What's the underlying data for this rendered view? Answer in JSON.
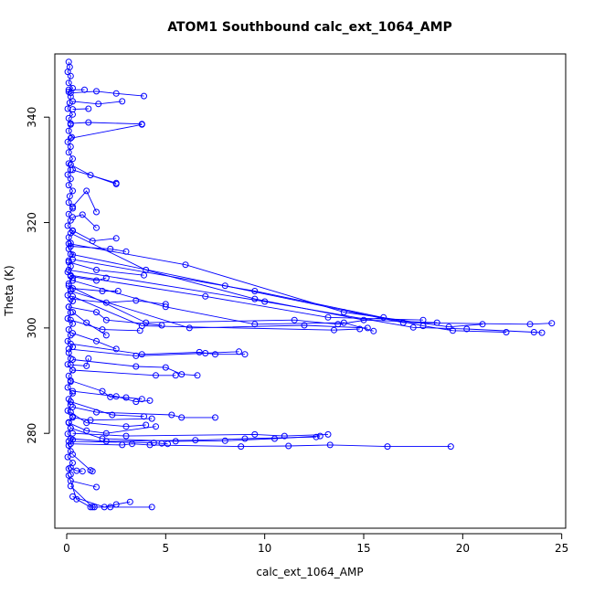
{
  "colors": {
    "series": "#0000ff",
    "axis": "#000000",
    "background": "#ffffff"
  },
  "chart_data": {
    "type": "line",
    "title": "ATOM1 Southbound calc_ext_1064_AMP",
    "xlabel": "calc_ext_1064_AMP",
    "ylabel": "Theta (K)",
    "xlim": [
      -0.6,
      25.2
    ],
    "ylim": [
      262,
      352
    ],
    "x_ticks": [
      0,
      5,
      10,
      15,
      20,
      25
    ],
    "y_ticks": [
      280,
      300,
      320,
      340
    ],
    "x_tick_labels": [
      "0",
      "5",
      "10",
      "15",
      "20",
      "25"
    ],
    "y_tick_labels": [
      "280",
      "300",
      "320",
      "340"
    ],
    "marker": "open-circle",
    "segments": [
      [
        [
          0.1,
          350.5
        ],
        [
          0.15,
          349.5
        ],
        [
          0.05,
          348.6
        ],
        [
          0.2,
          347.8
        ],
        [
          0.1,
          346.5
        ],
        [
          0.3,
          345.5
        ],
        [
          0.1,
          344.8
        ],
        [
          0.2,
          343.9
        ],
        [
          0.15,
          342.7
        ],
        [
          0.05,
          341.6
        ],
        [
          0.3,
          340.5
        ],
        [
          0.1,
          339.8
        ],
        [
          0.2,
          338.6
        ],
        [
          0.1,
          337.4
        ],
        [
          0.25,
          336.2
        ],
        [
          0.05,
          335.3
        ],
        [
          0.2,
          334.4
        ],
        [
          0.1,
          333.3
        ],
        [
          0.3,
          332.1
        ],
        [
          0.1,
          331.2
        ],
        [
          0.2,
          330.0
        ],
        [
          0.05,
          329.1
        ],
        [
          0.2,
          328.3
        ],
        [
          0.1,
          327.1
        ],
        [
          0.3,
          326.0
        ],
        [
          0.15,
          325.0
        ],
        [
          0.1,
          323.8
        ],
        [
          0.3,
          322.7
        ],
        [
          0.1,
          321.6
        ],
        [
          0.2,
          320.4
        ],
        [
          0.05,
          319.4
        ],
        [
          0.3,
          318.4
        ],
        [
          0.1,
          317.2
        ],
        [
          0.2,
          316.1
        ],
        [
          0.1,
          315.0
        ],
        [
          0.3,
          313.9
        ],
        [
          0.1,
          312.8
        ],
        [
          0.2,
          311.7
        ],
        [
          0.05,
          310.6
        ],
        [
          0.3,
          309.5
        ],
        [
          0.1,
          308.4
        ],
        [
          0.2,
          307.3
        ],
        [
          0.05,
          306.2
        ],
        [
          0.3,
          305.1
        ],
        [
          0.1,
          304.0
        ],
        [
          0.2,
          302.9
        ],
        [
          0.05,
          301.8
        ],
        [
          0.3,
          300.8
        ],
        [
          0.1,
          299.7
        ],
        [
          0.2,
          298.6
        ],
        [
          0.05,
          297.5
        ],
        [
          0.3,
          296.4
        ],
        [
          0.1,
          295.3
        ],
        [
          0.2,
          294.2
        ],
        [
          0.05,
          293.1
        ],
        [
          0.3,
          292.0
        ],
        [
          0.1,
          290.9
        ],
        [
          0.2,
          289.8
        ],
        [
          0.05,
          288.7
        ],
        [
          0.3,
          287.6
        ],
        [
          0.1,
          286.5
        ],
        [
          0.2,
          285.4
        ],
        [
          0.05,
          284.3
        ],
        [
          0.3,
          283.2
        ],
        [
          0.1,
          282.1
        ],
        [
          0.2,
          281.0
        ],
        [
          0.05,
          279.9
        ],
        [
          0.3,
          278.8
        ],
        [
          0.1,
          277.7
        ],
        [
          0.2,
          276.6
        ],
        [
          0.05,
          275.5
        ],
        [
          0.3,
          274.4
        ],
        [
          0.1,
          273.3
        ],
        [
          0.2,
          272.2
        ]
      ],
      [
        [
          0.2,
          344.6
        ],
        [
          1.5,
          344.9
        ],
        [
          2.5,
          344.5
        ],
        [
          3.9,
          344.0
        ]
      ],
      [
        [
          0.3,
          343.0
        ],
        [
          1.6,
          342.5
        ],
        [
          2.8,
          343.0
        ]
      ],
      [
        [
          0.2,
          338.8
        ],
        [
          1.1,
          339.0
        ],
        [
          3.8,
          338.7
        ]
      ],
      [
        [
          0.3,
          341.5
        ],
        [
          1.1,
          341.6
        ]
      ],
      [
        [
          0.1,
          345.2
        ],
        [
          0.9,
          345.2
        ]
      ],
      [
        [
          0.2,
          336.0
        ],
        [
          3.8,
          338.6
        ]
      ],
      [
        [
          0.3,
          330.0
        ],
        [
          2.5,
          327.5
        ]
      ],
      [
        [
          0.2,
          331.0
        ],
        [
          1.2,
          329.0
        ],
        [
          2.5,
          327.3
        ]
      ],
      [
        [
          0.3,
          323.0
        ],
        [
          1.0,
          326.0
        ],
        [
          1.5,
          322.0
        ]
      ],
      [
        [
          0.2,
          318.0
        ],
        [
          4.0,
          311.0
        ],
        [
          9.5,
          305.5
        ],
        [
          15.0,
          301.5
        ],
        [
          18.7,
          301.0
        ]
      ],
      [
        [
          0.1,
          316.0
        ],
        [
          6.0,
          312.0
        ],
        [
          14.0,
          303.0
        ],
        [
          19.3,
          300.2
        ],
        [
          21.0,
          300.7
        ]
      ],
      [
        [
          0.2,
          314.0
        ],
        [
          8.0,
          308.0
        ],
        [
          17.0,
          301.0
        ],
        [
          23.4,
          300.7
        ],
        [
          24.5,
          300.9
        ]
      ],
      [
        [
          0.3,
          313.0
        ],
        [
          9.5,
          307.0
        ],
        [
          18.0,
          300.4
        ],
        [
          19.5,
          299.5
        ],
        [
          22.2,
          299.2
        ]
      ],
      [
        [
          0.1,
          311.0
        ],
        [
          10.0,
          305.0
        ],
        [
          17.5,
          300.1
        ],
        [
          20.2,
          299.8
        ],
        [
          23.6,
          299.2
        ],
        [
          24.0,
          299.1
        ]
      ],
      [
        [
          0.2,
          310.0
        ],
        [
          7.0,
          306.0
        ],
        [
          13.2,
          302.0
        ],
        [
          18.0,
          301.5
        ]
      ],
      [
        [
          0.3,
          309.0
        ],
        [
          5.0,
          304.0
        ],
        [
          9.5,
          300.7
        ],
        [
          14.0,
          301.0
        ],
        [
          15.5,
          299.4
        ]
      ],
      [
        [
          0.1,
          308.0
        ],
        [
          4.0,
          301.0
        ],
        [
          11.5,
          301.5
        ],
        [
          13.7,
          300.7
        ],
        [
          16.0,
          302.0
        ]
      ],
      [
        [
          0.2,
          307.0
        ],
        [
          6.2,
          300.0
        ],
        [
          12.0,
          300.5
        ],
        [
          15.2,
          300.0
        ]
      ],
      [
        [
          0.3,
          306.0
        ],
        [
          3.8,
          300.4
        ],
        [
          13.5,
          299.6
        ],
        [
          14.8,
          299.8
        ]
      ],
      [
        [
          0.2,
          305.5
        ],
        [
          2.0,
          304.8
        ],
        [
          3.5,
          305.2
        ],
        [
          5.0,
          304.5
        ]
      ],
      [
        [
          0.1,
          304.0
        ],
        [
          1.5,
          303.0
        ],
        [
          2.0,
          301.5
        ],
        [
          4.8,
          300.5
        ]
      ],
      [
        [
          0.3,
          303.0
        ],
        [
          1.0,
          301.0
        ],
        [
          2.0,
          298.6
        ]
      ],
      [
        [
          0.2,
          301.5
        ],
        [
          1.8,
          299.7
        ],
        [
          3.7,
          299.5
        ]
      ],
      [
        [
          0.3,
          299.0
        ],
        [
          1.5,
          297.5
        ],
        [
          2.5,
          296.0
        ]
      ],
      [
        [
          0.2,
          297.0
        ],
        [
          3.8,
          295.0
        ],
        [
          6.7,
          295.4
        ],
        [
          7.5,
          295.0
        ],
        [
          9.0,
          295.0
        ]
      ],
      [
        [
          0.1,
          296.0
        ],
        [
          3.5,
          294.7
        ],
        [
          7.0,
          295.2
        ],
        [
          8.7,
          295.5
        ]
      ],
      [
        [
          0.3,
          294.0
        ],
        [
          3.5,
          292.7
        ],
        [
          5.0,
          292.5
        ],
        [
          5.8,
          291.2
        ],
        [
          6.6,
          291.0
        ]
      ],
      [
        [
          0.2,
          293.0
        ],
        [
          1.0,
          292.8
        ],
        [
          1.1,
          294.2
        ]
      ],
      [
        [
          0.3,
          292.0
        ],
        [
          4.5,
          291.0
        ],
        [
          5.5,
          291.0
        ]
      ],
      [
        [
          0.2,
          290.0
        ],
        [
          1.8,
          288.0
        ],
        [
          2.2,
          286.9
        ],
        [
          3.0,
          286.8
        ],
        [
          3.8,
          286.5
        ]
      ],
      [
        [
          0.3,
          288.0
        ],
        [
          2.5,
          287.0
        ],
        [
          3.5,
          286.0
        ],
        [
          4.2,
          286.2
        ]
      ],
      [
        [
          0.2,
          286.0
        ],
        [
          2.3,
          283.5
        ],
        [
          3.9,
          283.2
        ]
      ],
      [
        [
          0.3,
          285.0
        ],
        [
          1.5,
          284.0
        ],
        [
          5.3,
          283.5
        ],
        [
          5.8,
          283.0
        ],
        [
          7.5,
          283.0
        ]
      ],
      [
        [
          0.2,
          284.0
        ],
        [
          1.0,
          282.0
        ],
        [
          3.0,
          281.3
        ],
        [
          4.0,
          281.6
        ]
      ],
      [
        [
          0.3,
          283.0
        ],
        [
          1.2,
          282.5
        ],
        [
          4.3,
          282.8
        ]
      ],
      [
        [
          0.1,
          282.0
        ],
        [
          1.0,
          280.5
        ],
        [
          2.0,
          280.0
        ],
        [
          4.5,
          281.3
        ]
      ],
      [
        [
          0.2,
          281.0
        ],
        [
          1.8,
          279.0
        ],
        [
          5.5,
          278.5
        ],
        [
          8.0,
          278.6
        ],
        [
          10.5,
          279.0
        ],
        [
          12.8,
          279.5
        ]
      ],
      [
        [
          0.3,
          280.0
        ],
        [
          3.0,
          279.5
        ],
        [
          9.5,
          279.8
        ],
        [
          11.0,
          279.5
        ],
        [
          13.2,
          279.8
        ]
      ],
      [
        [
          0.2,
          279.0
        ],
        [
          2.0,
          278.5
        ],
        [
          6.5,
          278.7
        ],
        [
          9.0,
          279.0
        ],
        [
          12.6,
          279.3
        ]
      ],
      [
        [
          0.1,
          278.5
        ],
        [
          4.4,
          278.2
        ],
        [
          4.8,
          278.1
        ],
        [
          5.1,
          278.0
        ]
      ],
      [
        [
          0.2,
          278.0
        ],
        [
          2.8,
          277.8
        ],
        [
          3.3,
          278.0
        ],
        [
          4.2,
          277.8
        ],
        [
          8.8,
          277.5
        ],
        [
          11.2,
          277.6
        ],
        [
          13.3,
          277.8
        ],
        [
          16.2,
          277.5
        ],
        [
          19.4,
          277.5
        ]
      ],
      [
        [
          0.3,
          276.0
        ],
        [
          1.2,
          273.0
        ],
        [
          1.3,
          272.8
        ]
      ],
      [
        [
          0.2,
          273.5
        ],
        [
          0.5,
          272.9
        ],
        [
          0.8,
          272.8
        ]
      ],
      [
        [
          0.1,
          272.0
        ],
        [
          0.5,
          267.5
        ],
        [
          1.2,
          266.0
        ],
        [
          1.4,
          266.0
        ]
      ],
      [
        [
          0.2,
          271.0
        ],
        [
          1.5,
          269.8
        ]
      ],
      [
        [
          0.3,
          268.0
        ],
        [
          1.9,
          266.0
        ],
        [
          2.5,
          266.5
        ],
        [
          3.2,
          267.0
        ]
      ],
      [
        [
          0.2,
          270.0
        ],
        [
          1.3,
          266.0
        ],
        [
          2.2,
          266.0
        ],
        [
          4.3,
          266.0
        ]
      ],
      [
        [
          0.3,
          318.5
        ],
        [
          1.3,
          316.5
        ],
        [
          2.5,
          317.0
        ]
      ],
      [
        [
          0.2,
          315.5
        ],
        [
          2.2,
          315.0
        ],
        [
          3.0,
          314.5
        ]
      ],
      [
        [
          0.1,
          312.5
        ],
        [
          1.5,
          311.0
        ],
        [
          3.9,
          310.0
        ]
      ],
      [
        [
          0.3,
          321.0
        ],
        [
          0.8,
          321.5
        ],
        [
          1.5,
          319.0
        ]
      ],
      [
        [
          0.2,
          309.8
        ],
        [
          1.5,
          309.0
        ],
        [
          2.0,
          309.5
        ]
      ],
      [
        [
          0.3,
          307.5
        ],
        [
          1.8,
          307.0
        ],
        [
          2.6,
          307.0
        ]
      ]
    ]
  }
}
